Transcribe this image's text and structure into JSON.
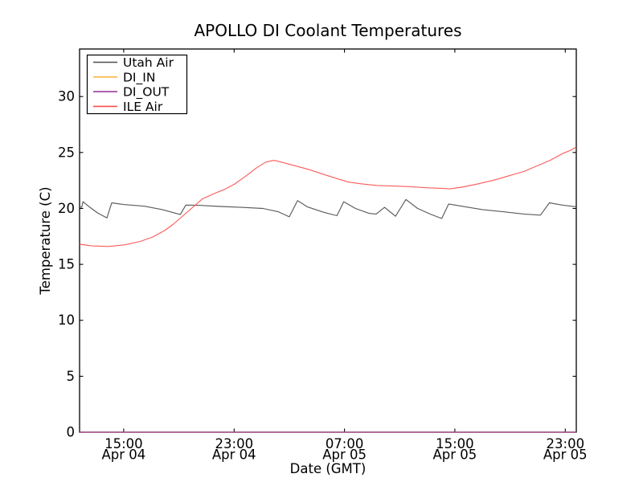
{
  "chart_data": {
    "type": "line",
    "title": "APOLLO DI Coolant Temperatures",
    "xlabel": "Date (GMT)",
    "ylabel": "Temperature (C)",
    "grid": false,
    "background": "#ffffff",
    "axis_color": "#000000",
    "legend_position": "upper left",
    "ylim": [
      0,
      34.25
    ],
    "yticks": [
      0,
      5,
      10,
      15,
      20,
      25,
      30
    ],
    "xlim_hours": [
      11.8,
      47.8
    ],
    "xticks": [
      {
        "t": 15,
        "time": "15:00",
        "date": "Apr 04"
      },
      {
        "t": 23,
        "time": "23:00",
        "date": "Apr 04"
      },
      {
        "t": 31,
        "time": "07:00",
        "date": "Apr 05"
      },
      {
        "t": 39,
        "time": "15:00",
        "date": "Apr 05"
      },
      {
        "t": 47,
        "time": "23:00",
        "date": "Apr 05"
      }
    ],
    "series": [
      {
        "name": "Utah Air",
        "color": "#4d4d4d",
        "points": [
          [
            11.8,
            20.15
          ],
          [
            11.95,
            20.1
          ],
          [
            12.05,
            20.6
          ],
          [
            12.5,
            20.15
          ],
          [
            13.1,
            19.6
          ],
          [
            13.78,
            19.15
          ],
          [
            14.13,
            20.5
          ],
          [
            15.0,
            20.35
          ],
          [
            16.5,
            20.2
          ],
          [
            17.8,
            19.9
          ],
          [
            19.1,
            19.45
          ],
          [
            19.5,
            20.3
          ],
          [
            20.5,
            20.28
          ],
          [
            22.0,
            20.18
          ],
          [
            23.5,
            20.1
          ],
          [
            25.1,
            20.0
          ],
          [
            26.2,
            19.7
          ],
          [
            27.0,
            19.25
          ],
          [
            27.6,
            20.7
          ],
          [
            28.3,
            20.15
          ],
          [
            29.5,
            19.65
          ],
          [
            30.45,
            19.35
          ],
          [
            30.95,
            20.6
          ],
          [
            31.8,
            20.0
          ],
          [
            32.8,
            19.55
          ],
          [
            33.3,
            19.5
          ],
          [
            33.9,
            20.1
          ],
          [
            34.4,
            19.6
          ],
          [
            34.7,
            19.3
          ],
          [
            35.45,
            20.8
          ],
          [
            36.3,
            20.0
          ],
          [
            37.3,
            19.45
          ],
          [
            38.05,
            19.1
          ],
          [
            38.55,
            20.4
          ],
          [
            39.5,
            20.2
          ],
          [
            41.0,
            19.9
          ],
          [
            42.5,
            19.7
          ],
          [
            44.0,
            19.5
          ],
          [
            45.2,
            19.4
          ],
          [
            45.85,
            20.5
          ],
          [
            46.8,
            20.3
          ],
          [
            47.8,
            20.15
          ]
        ]
      },
      {
        "name": "DI_IN",
        "color": "#ffb347",
        "points": [
          [
            11.8,
            0
          ],
          [
            47.8,
            0
          ]
        ]
      },
      {
        "name": "DI_OUT",
        "color": "#9b3d9b",
        "points": [
          [
            11.8,
            0
          ],
          [
            47.8,
            0
          ]
        ]
      },
      {
        "name": "ILE Air",
        "color": "#f94f4f",
        "points": [
          [
            11.8,
            16.8
          ],
          [
            12.7,
            16.65
          ],
          [
            13.9,
            16.6
          ],
          [
            15.1,
            16.75
          ],
          [
            16.2,
            17.05
          ],
          [
            17.1,
            17.45
          ],
          [
            18.0,
            18.05
          ],
          [
            18.6,
            18.6
          ],
          [
            19.3,
            19.35
          ],
          [
            20.0,
            20.1
          ],
          [
            20.7,
            20.85
          ],
          [
            21.5,
            21.3
          ],
          [
            22.3,
            21.7
          ],
          [
            23.0,
            22.15
          ],
          [
            23.8,
            22.85
          ],
          [
            24.6,
            23.6
          ],
          [
            25.3,
            24.15
          ],
          [
            25.9,
            24.3
          ],
          [
            26.4,
            24.15
          ],
          [
            27.3,
            23.85
          ],
          [
            28.5,
            23.45
          ],
          [
            29.6,
            23.0
          ],
          [
            30.5,
            22.65
          ],
          [
            31.3,
            22.35
          ],
          [
            32.2,
            22.2
          ],
          [
            33.4,
            22.05
          ],
          [
            34.6,
            22.0
          ],
          [
            35.7,
            21.95
          ],
          [
            36.9,
            21.85
          ],
          [
            38.0,
            21.8
          ],
          [
            38.65,
            21.75
          ],
          [
            39.5,
            21.9
          ],
          [
            40.7,
            22.2
          ],
          [
            41.9,
            22.55
          ],
          [
            43.0,
            22.95
          ],
          [
            44.0,
            23.3
          ],
          [
            44.95,
            23.8
          ],
          [
            45.9,
            24.3
          ],
          [
            46.8,
            24.9
          ],
          [
            47.4,
            25.2
          ],
          [
            47.8,
            25.5
          ]
        ]
      }
    ]
  }
}
